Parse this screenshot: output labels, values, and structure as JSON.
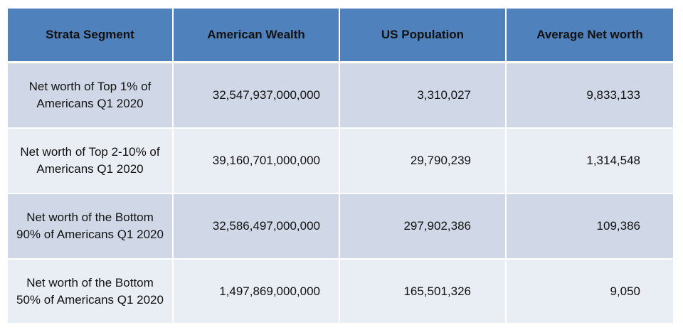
{
  "table": {
    "headers": [
      "Strata Segment",
      "American Wealth",
      "US Population",
      "Average Net worth"
    ],
    "rows": [
      {
        "segment_line1": "Net worth of Top 1% of",
        "segment_line2": "Americans Q1 2020",
        "wealth": "32,547,937,000,000",
        "population": "3,310,027",
        "average": "9,833,133"
      },
      {
        "segment_line1": "Net worth of Top 2-10% of",
        "segment_line2": "Americans Q1 2020",
        "wealth": "39,160,701,000,000",
        "population": "29,790,239",
        "average": "1,314,548"
      },
      {
        "segment_line1": "Net worth of the Bottom",
        "segment_line2": "90% of Americans Q1 2020",
        "wealth": "32,586,497,000,000",
        "population": "297,902,386",
        "average": "109,386"
      },
      {
        "segment_line1": "Net worth of the Bottom",
        "segment_line2": "50% of Americans Q1 2020",
        "wealth": "1,497,869,000,000",
        "population": "165,501,326",
        "average": "9,050"
      }
    ]
  },
  "colors": {
    "header_bg": "#4f81bd",
    "row_odd_bg": "#d0d8e8",
    "row_even_bg": "#e9edf4"
  }
}
